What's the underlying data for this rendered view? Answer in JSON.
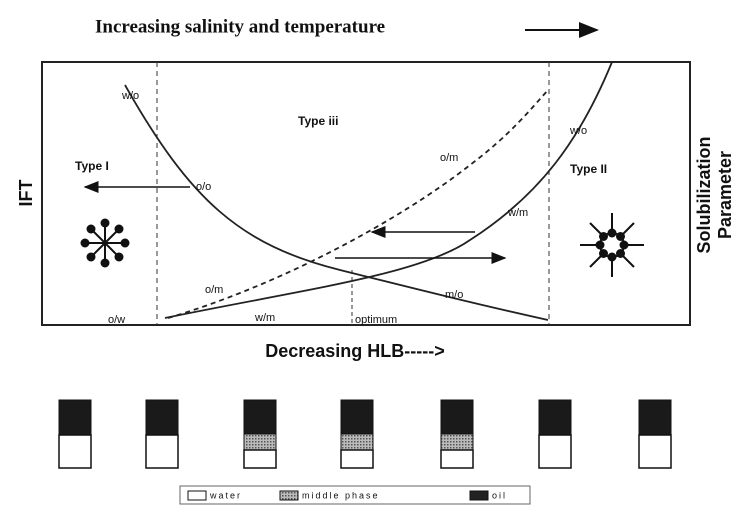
{
  "header": {
    "title": "Increasing salinity and temperature"
  },
  "axes": {
    "y_label": "IFT",
    "right_label": [
      "Solubilization",
      "Parameter"
    ],
    "x_label": "Decreasing HLB----->"
  },
  "regions": [
    "Type I",
    "Type iii",
    "Type II"
  ],
  "curve_labels": [
    "w/o",
    "o/o",
    "o/m",
    "w/o",
    "w/m",
    "o/m",
    "m/o",
    "o/w",
    "w/m",
    "optimum"
  ],
  "legend": [
    "water",
    "middle phase",
    "oil"
  ]
}
